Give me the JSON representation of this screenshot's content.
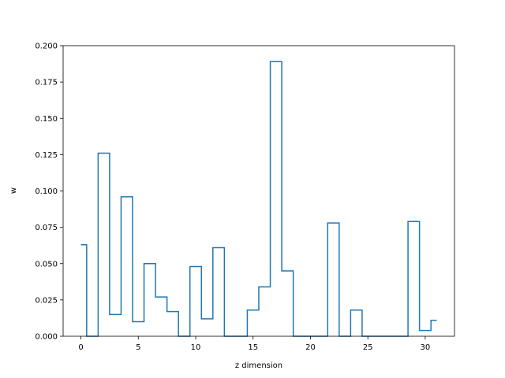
{
  "chart_data": {
    "type": "line",
    "drawstyle": "steps-mid",
    "title": "",
    "xlabel": "z dimension",
    "ylabel": "w",
    "xlim": [
      -1.55,
      32.55
    ],
    "ylim": [
      0,
      0.2
    ],
    "grid": false,
    "legend": "none",
    "line_color": "#1f77b4",
    "xticks": [
      0,
      5,
      10,
      15,
      20,
      25,
      30
    ],
    "xtick_labels": [
      "0",
      "5",
      "10",
      "15",
      "20",
      "25",
      "30"
    ],
    "yticks": [
      0,
      0.025,
      0.05,
      0.075,
      0.1,
      0.125,
      0.15,
      0.175,
      0.2
    ],
    "ytick_labels": [
      "0.000",
      "0.025",
      "0.050",
      "0.075",
      "0.100",
      "0.125",
      "0.150",
      "0.175",
      "0.200"
    ],
    "x": [
      0,
      1,
      2,
      3,
      4,
      5,
      6,
      7,
      8,
      9,
      10,
      11,
      12,
      13,
      14,
      15,
      16,
      17,
      18,
      19,
      20,
      21,
      22,
      23,
      24,
      25,
      26,
      27,
      28,
      29,
      30,
      31
    ],
    "values": [
      0.063,
      0,
      0.126,
      0.015,
      0.096,
      0.01,
      0.05,
      0.027,
      0.017,
      0,
      0.048,
      0.012,
      0.061,
      0,
      0,
      0.018,
      0.034,
      0.189,
      0.045,
      0,
      0,
      0,
      0.078,
      0,
      0.018,
      0,
      0,
      0,
      0,
      0.079,
      0.004,
      0.011
    ]
  }
}
